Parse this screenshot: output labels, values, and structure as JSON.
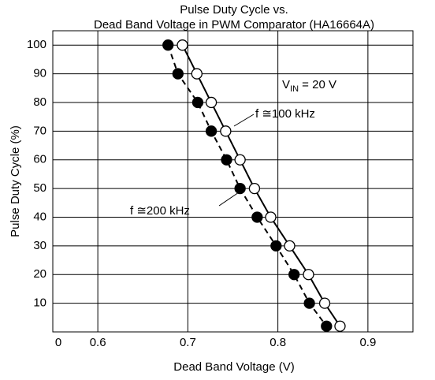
{
  "chart_data": {
    "type": "line",
    "title": [
      "Pulse Duty Cycle vs.",
      "Dead Band Voltage in PWM Comparator (HA16664A)"
    ],
    "x_label": "Dead Band Voltage (V)",
    "y_label": "Pulse Duty Cycle (%)",
    "annotation": {
      "main": "V",
      "sub": "IN",
      "rest": " = 20 V"
    },
    "xlim": [
      0.55,
      0.95
    ],
    "xticks": [
      0.6,
      0.7,
      0.8,
      0.9
    ],
    "ylim": [
      0,
      105
    ],
    "yticks": [
      0,
      10,
      20,
      30,
      40,
      50,
      60,
      70,
      80,
      90,
      100
    ],
    "grid": true,
    "series": [
      {
        "name": "f ≅100 kHz",
        "color": "#000000",
        "marker": "open",
        "dash": false,
        "x": [
          0.694,
          0.71,
          0.726,
          0.742,
          0.758,
          0.774,
          0.792,
          0.813,
          0.834,
          0.852,
          0.869
        ],
        "values": [
          100,
          90,
          80,
          70,
          60,
          50,
          40,
          30,
          20,
          10,
          2
        ]
      },
      {
        "name": "f ≅200 kHz",
        "color": "#000000",
        "marker": "filled",
        "dash": true,
        "x": [
          0.678,
          0.689,
          0.711,
          0.726,
          0.743,
          0.758,
          0.777,
          0.798,
          0.818,
          0.835,
          0.854
        ],
        "values": [
          100,
          90,
          80,
          70,
          60,
          50,
          40,
          30,
          20,
          10,
          2
        ]
      }
    ]
  }
}
